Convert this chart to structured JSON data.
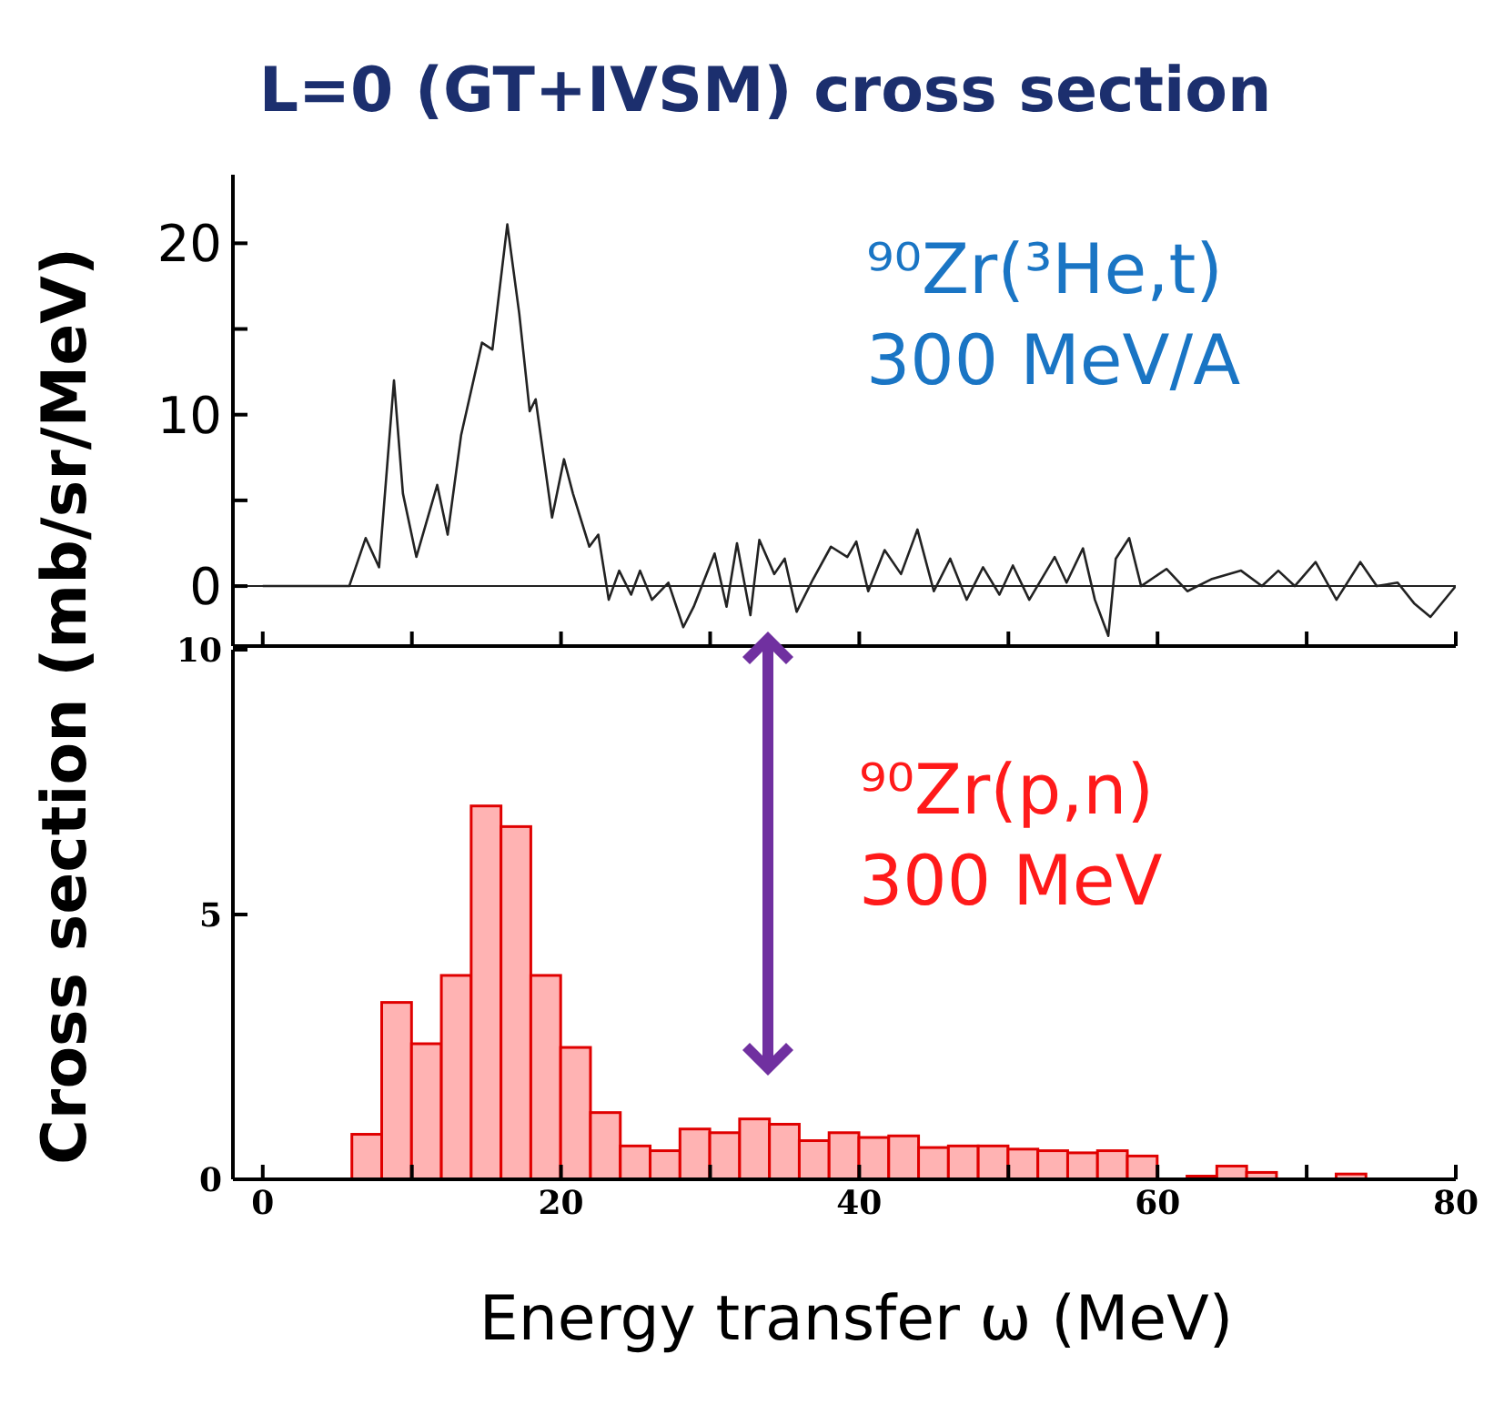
{
  "chart_data": [
    {
      "type": "line",
      "title": "L=0 (GT+IVSM) cross section",
      "ylabel": "Cross section (mb/sr/MeV)",
      "annotations": [
        "⁹⁰Zr(³He,t)",
        "300 MeV/A"
      ],
      "x": [
        0,
        5.8,
        6.9,
        7.8,
        8.8,
        9.4,
        10.3,
        11.7,
        12.4,
        13.3,
        14.7,
        15.4,
        16.4,
        17.2,
        17.9,
        18.3,
        19.4,
        20.2,
        20.8,
        21.9,
        22.5,
        23.2,
        23.9,
        24.7,
        25.3,
        26.1,
        27.2,
        28.2,
        28.9,
        30.3,
        31.1,
        31.8,
        32.7,
        33.3,
        34.3,
        35.0,
        35.8,
        36.9,
        38.1,
        39.2,
        39.8,
        40.6,
        41.7,
        42.8,
        43.9,
        45.0,
        46.1,
        47.2,
        48.3,
        49.4,
        50.3,
        51.4,
        53.1,
        53.9,
        55.0,
        55.8,
        56.7,
        57.2,
        58.1,
        58.9,
        60.6,
        62.0,
        63.6,
        65.6,
        67.0,
        68.1,
        69.2,
        70.6,
        72.0,
        73.6,
        74.7,
        76.1,
        77.2,
        78.3,
        80
      ],
      "series": [
        {
          "color": "#222222",
          "values": [
            0,
            0,
            2.8,
            1.1,
            12,
            5.4,
            1.7,
            5.9,
            3.0,
            8.8,
            14.2,
            13.8,
            21.1,
            15.9,
            10.2,
            10.9,
            4.0,
            7.4,
            5.4,
            2.3,
            3.0,
            -0.8,
            0.9,
            -0.5,
            0.9,
            -0.8,
            0.2,
            -2.4,
            -1.2,
            1.9,
            -1.2,
            2.5,
            -1.7,
            2.7,
            0.7,
            1.6,
            -1.5,
            0.4,
            2.3,
            1.7,
            2.6,
            -0.3,
            2.1,
            0.7,
            3.3,
            -0.3,
            1.6,
            -0.8,
            1.1,
            -0.5,
            1.2,
            -0.8,
            1.7,
            0.2,
            2.2,
            -0.8,
            -2.9,
            1.6,
            2.8,
            0,
            1.0,
            -0.3,
            0.4,
            0.9,
            0,
            0.9,
            0,
            1.4,
            -0.8,
            1.4,
            0,
            0.2,
            -1.0,
            -1.8,
            0
          ]
        }
      ],
      "xlim": [
        -2,
        80
      ],
      "xticks": [
        {
          "value": 0,
          "label": null
        },
        {
          "value": 10,
          "label": null
        },
        {
          "value": 20,
          "label": null
        },
        {
          "value": 30,
          "label": null
        },
        {
          "value": 40,
          "label": null
        },
        {
          "value": 50,
          "label": null
        },
        {
          "value": 60,
          "label": null
        },
        {
          "value": 70,
          "label": null
        },
        {
          "value": 80,
          "label": null
        }
      ],
      "ylim": [
        -3.5,
        24
      ],
      "yticks": [
        0,
        {
          "value": 5,
          "label": null
        },
        10,
        {
          "value": 15,
          "label": null
        },
        20
      ],
      "tick_labels": "y",
      "marker": "none",
      "line_style": "solid",
      "ref_lines": [
        {
          "axis": "y",
          "value": 0,
          "color": "#222222"
        }
      ]
    },
    {
      "type": "histogram",
      "xlabel": "Energy transfer ω (MeV)",
      "annotations": [
        "⁹⁰Zr(p,n)",
        "300 MeV"
      ],
      "bins": [
        6,
        8,
        10,
        12,
        14,
        16,
        18,
        20,
        22,
        24,
        26,
        28,
        30,
        32,
        34,
        36,
        38,
        40,
        42,
        44,
        46,
        48,
        50,
        52,
        54,
        56,
        58,
        60,
        62,
        64,
        66,
        68,
        70,
        72,
        74
      ],
      "values": [
        0.85,
        3.34,
        2.56,
        3.85,
        7.05,
        6.66,
        3.85,
        2.49,
        1.26,
        0.63,
        0.54,
        0.95,
        0.88,
        1.14,
        1.04,
        0.73,
        0.88,
        0.79,
        0.82,
        0.6,
        0.63,
        0.63,
        0.57,
        0.54,
        0.5,
        0.54,
        0.44,
        0,
        0.06,
        0.25,
        0.13,
        0,
        0,
        0.1
      ],
      "color": "#ffb3b3",
      "xlim": [
        -2,
        80
      ],
      "xticks": [
        0,
        {
          "value": 10,
          "label": null
        },
        20,
        {
          "value": 30,
          "label": null
        },
        40,
        {
          "value": 50,
          "label": null
        },
        60,
        {
          "value": 70,
          "label": null
        },
        80
      ],
      "ylim": [
        0,
        10
      ],
      "yticks": [
        0,
        5,
        10
      ]
    }
  ]
}
